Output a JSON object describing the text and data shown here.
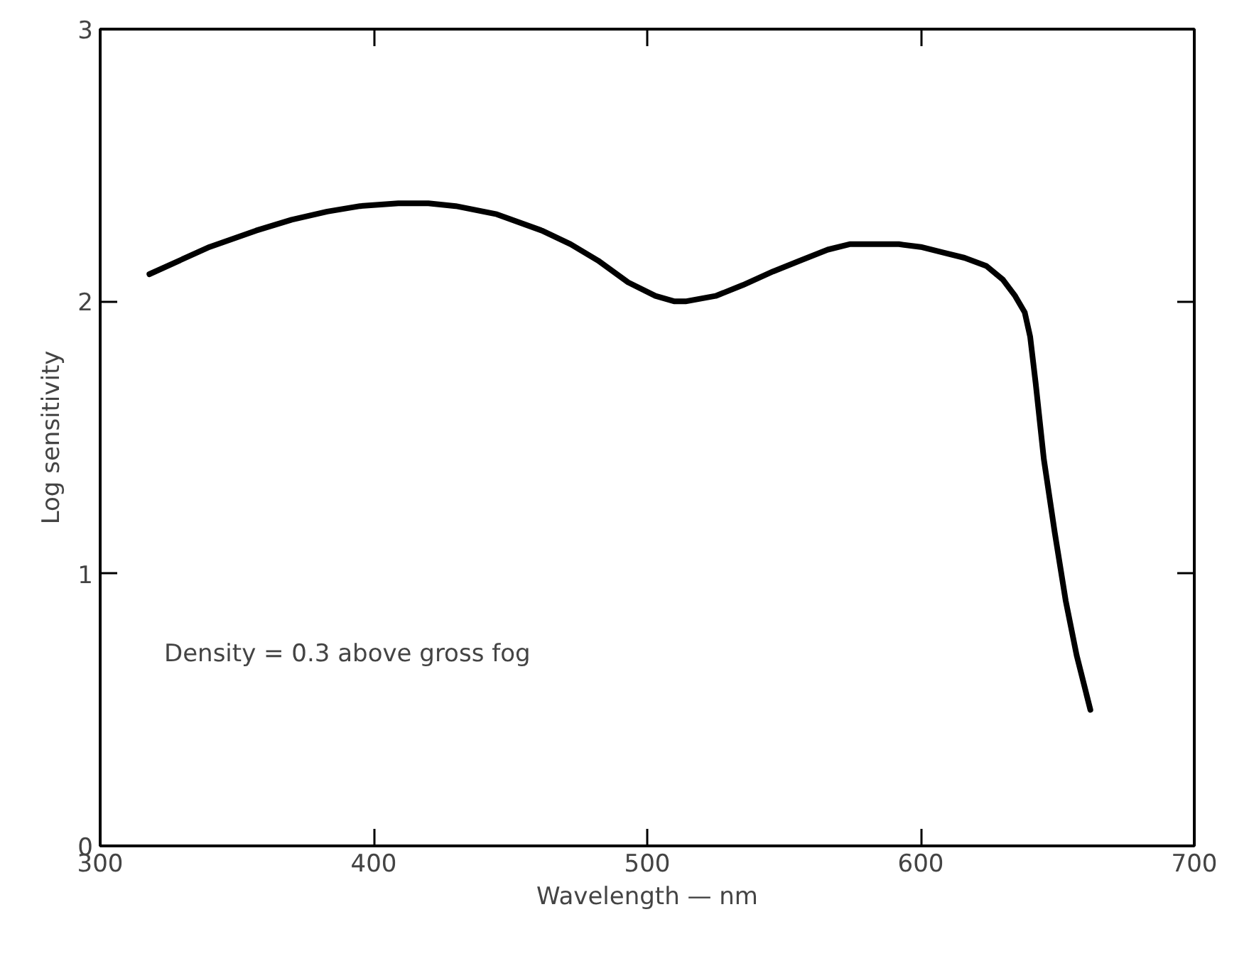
{
  "chart_data": {
    "type": "line",
    "xlabel": "Wavelength — nm",
    "ylabel": "Log sensitivity",
    "annotations": [
      "Density = 0.3 above gross fog"
    ],
    "x": [
      318,
      340,
      357,
      370,
      383,
      395,
      409,
      420,
      430,
      445,
      461.5,
      472,
      482,
      493,
      503,
      510,
      514,
      525,
      535,
      546,
      556,
      566,
      574,
      582,
      592,
      600,
      608,
      616,
      624,
      630,
      634.5,
      638,
      640,
      642,
      645,
      649,
      653,
      657,
      662
    ],
    "series": [
      {
        "color": "#000000",
        "values": [
          2.1,
          2.2,
          2.26,
          2.3,
          2.33,
          2.35,
          2.36,
          2.36,
          2.35,
          2.32,
          2.26,
          2.21,
          2.15,
          2.07,
          2.02,
          2.0,
          2.0,
          2.02,
          2.06,
          2.11,
          2.15,
          2.19,
          2.21,
          2.21,
          2.21,
          2.2,
          2.18,
          2.16,
          2.13,
          2.08,
          2.02,
          1.96,
          1.87,
          1.7,
          1.42,
          1.15,
          0.9,
          0.7,
          0.5
        ]
      }
    ],
    "xlim": [
      300,
      700
    ],
    "ylim": [
      0,
      3
    ],
    "xticks": [
      300,
      400,
      500,
      600,
      700
    ],
    "yticks": [
      0,
      1,
      2,
      3
    ],
    "grid": false,
    "marker": "none",
    "line_style": "solid"
  }
}
